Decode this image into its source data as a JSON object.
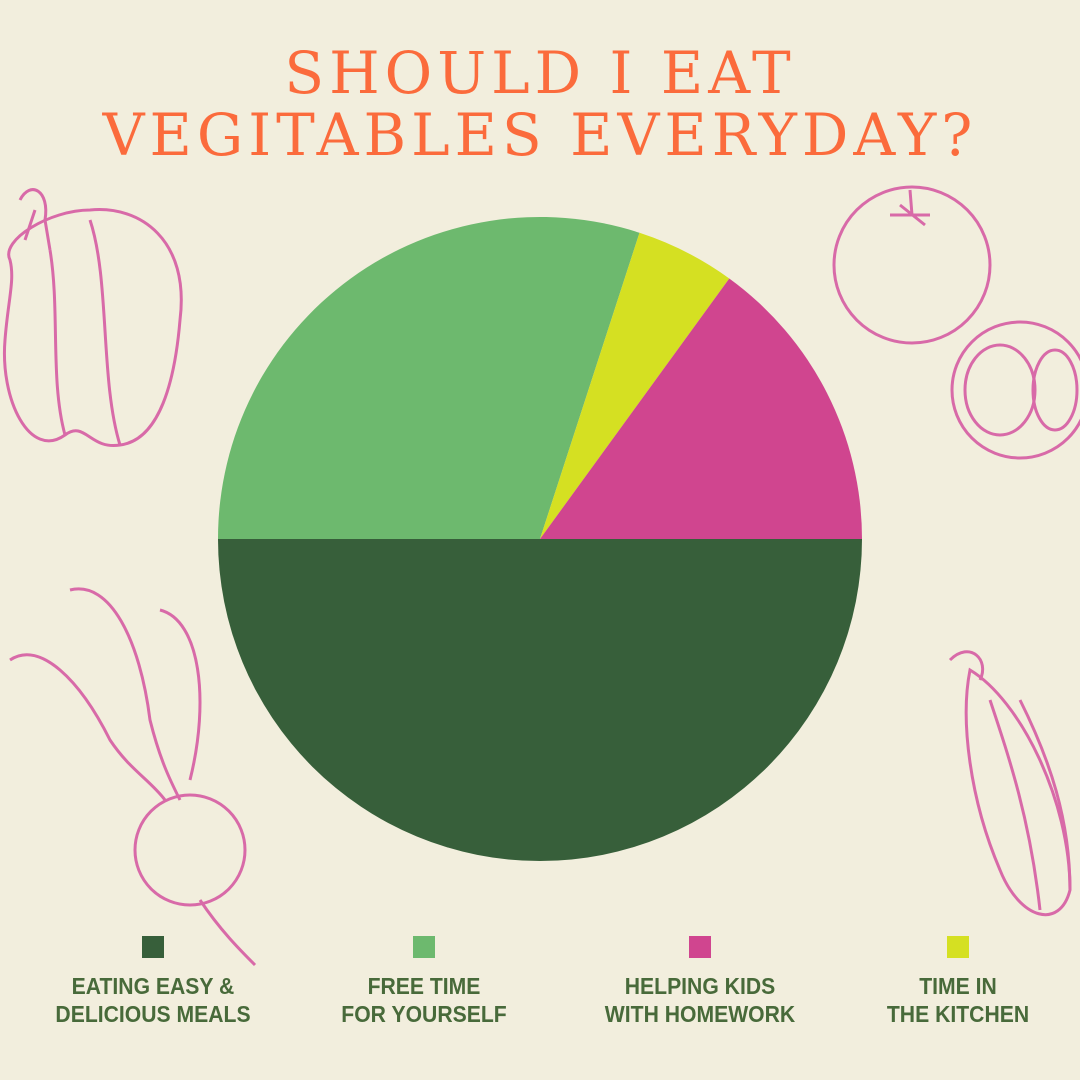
{
  "title": {
    "line1": "SHOULD I EAT",
    "line2": "VEGITABLES EVERYDAY?"
  },
  "colors": {
    "background": "#f2eedd",
    "title": "#fb6b3c",
    "legend_text": "#486a3a",
    "illustration": "#d86aa8"
  },
  "illustrations": [
    "bell-pepper",
    "tomatoes",
    "beetroot",
    "corn"
  ],
  "chart_data": {
    "type": "pie",
    "title": "SHOULD I EAT VEGITABLES EVERYDAY?",
    "start_angle": "3 o'clock, clockwise",
    "legend_position": "bottom",
    "slices": [
      {
        "label": "EATING EASY & DELICIOUS MEALS",
        "line1": "EATING EASY &",
        "line2": "DELICIOUS MEALS",
        "value": 50,
        "color": "#375f3a"
      },
      {
        "label": "FREE TIME FOR YOURSELF",
        "line1": "FREE TIME",
        "line2": "FOR YOURSELF",
        "value": 30,
        "color": "#6db96e"
      },
      {
        "label": "HELPING KIDS WITH HOMEWORK",
        "line1": "HELPING KIDS",
        "line2": "WITH HOMEWORK",
        "value": 15,
        "color": "#d0458f"
      },
      {
        "label": "TIME IN THE KITCHEN",
        "line1": "TIME IN",
        "line2": "THE KITCHEN",
        "value": 5,
        "color": "#d5e022"
      }
    ],
    "draw_order": [
      "EATING EASY & DELICIOUS MEALS",
      "FREE TIME FOR YOURSELF",
      "TIME IN THE KITCHEN",
      "HELPING KIDS WITH HOMEWORK"
    ]
  }
}
